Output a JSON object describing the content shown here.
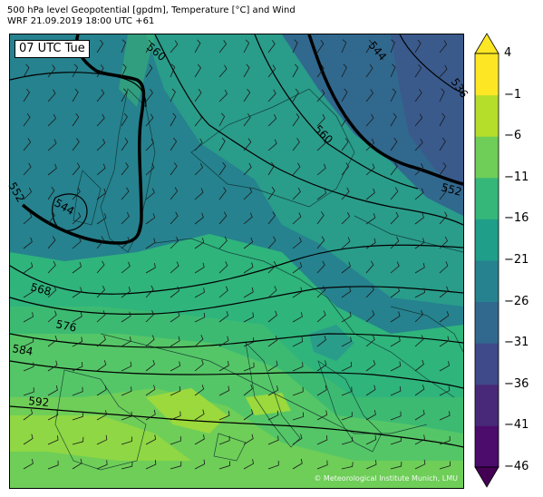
{
  "header": {
    "title_line1": "500 hPa level Geopotential [gpdm], Temperature [°C] and Wind",
    "title_line2": "WRF 21.09.2019 18:00 UTC +61"
  },
  "map": {
    "time_label": "07 UTC Tue",
    "copyright": "© Meteorological Institute Munich, LMU",
    "contour_labels": [
      "560",
      "544",
      "536",
      "560",
      "552",
      "552",
      "544",
      "568",
      "576",
      "584",
      "592"
    ]
  },
  "colorbar": {
    "ticks": [
      "4",
      "−1",
      "−6",
      "−11",
      "−16",
      "−21",
      "−26",
      "−31",
      "−36",
      "−41",
      "−46"
    ],
    "colors": [
      "#4b0c6b",
      "#482878",
      "#3e4a89",
      "#31688e",
      "#26828e",
      "#1f9e89",
      "#35b779",
      "#6ece58",
      "#b5de2b",
      "#fde725"
    ],
    "extend_low_color": "#440154",
    "extend_high_color": "#fde725"
  }
}
